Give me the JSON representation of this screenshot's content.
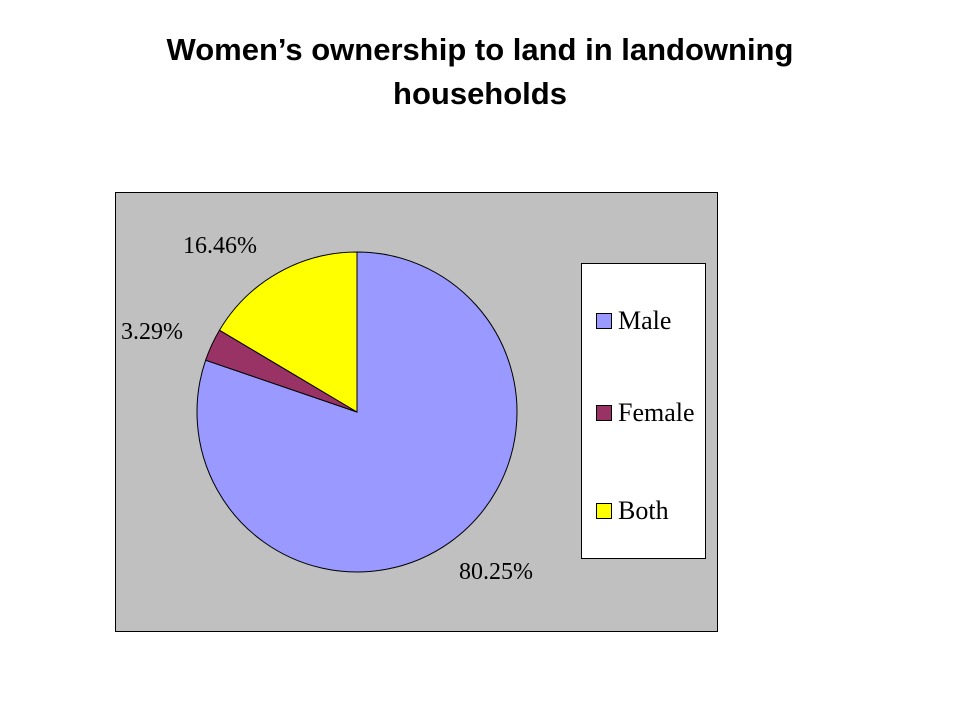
{
  "title": "Women’s ownership to land in landowning households",
  "chart_data": {
    "type": "pie",
    "title": "Women’s ownership to land in landowning households",
    "categories": [
      "Male",
      "Female",
      "Both"
    ],
    "values": [
      80.25,
      3.29,
      16.46
    ],
    "labels": [
      "80.25%",
      "3.29%",
      "16.46%"
    ],
    "colors": [
      "#9999ff",
      "#993366",
      "#ffff00"
    ],
    "legend": "right",
    "background": "#c0c0c0"
  }
}
